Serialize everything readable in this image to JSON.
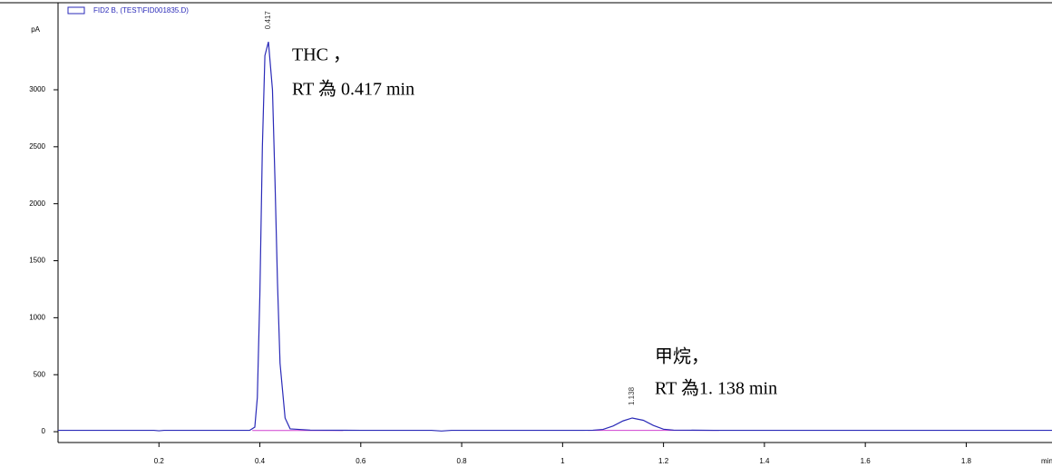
{
  "chart_data": {
    "type": "line",
    "legend_label": "FID2 B, (TEST\\FID001835.D)",
    "ylabel": "pA",
    "xlabel": "min",
    "xlim": [
      0,
      1.97
    ],
    "ylim": [
      -95,
      3525
    ],
    "xticks": [
      0.2,
      0.4,
      0.6,
      0.8,
      1,
      1.2,
      1.4,
      1.6,
      1.8
    ],
    "yticks": [
      0,
      500,
      1000,
      1500,
      2000,
      2500,
      3000
    ],
    "series": [
      {
        "name": "FID2 B, (TEST\\FID001835.D)",
        "color": "#2a2ab8",
        "x": [
          0,
          0.1,
          0.19,
          0.2,
          0.21,
          0.3,
          0.38,
          0.39,
          0.395,
          0.4,
          0.405,
          0.41,
          0.417,
          0.425,
          0.43,
          0.435,
          0.44,
          0.45,
          0.46,
          0.5,
          0.6,
          0.74,
          0.76,
          0.78,
          0.9,
          1,
          1.04,
          1.06,
          1.08,
          1.1,
          1.12,
          1.138,
          1.16,
          1.18,
          1.2,
          1.22,
          1.3,
          1.5,
          1.7,
          1.97
        ],
        "values": [
          12,
          12,
          12,
          8,
          12,
          12,
          12,
          40,
          300,
          1200,
          2500,
          3300,
          3420,
          3000,
          2200,
          1300,
          600,
          120,
          25,
          14,
          12,
          12,
          6,
          12,
          12,
          12,
          12,
          13,
          20,
          50,
          95,
          120,
          100,
          55,
          22,
          14,
          12,
          12,
          12,
          12
        ]
      }
    ],
    "baseline_color": "#d040d0",
    "baselines": [
      {
        "x": [
          0.385,
          0.565
        ],
        "y": [
          10,
          10
        ]
      },
      {
        "x": [
          1.05,
          1.31
        ],
        "y": [
          11,
          11
        ]
      }
    ],
    "peaks": [
      {
        "x": 0.417,
        "y": 3420,
        "label": 0.417,
        "annotation": [
          "THC ，",
          "RT 為 0.417 min"
        ]
      },
      {
        "x": 1.138,
        "y": 120,
        "label": 1.138,
        "annotation": [
          "甲烷，",
          "RT 為1. 138  min"
        ]
      }
    ]
  }
}
